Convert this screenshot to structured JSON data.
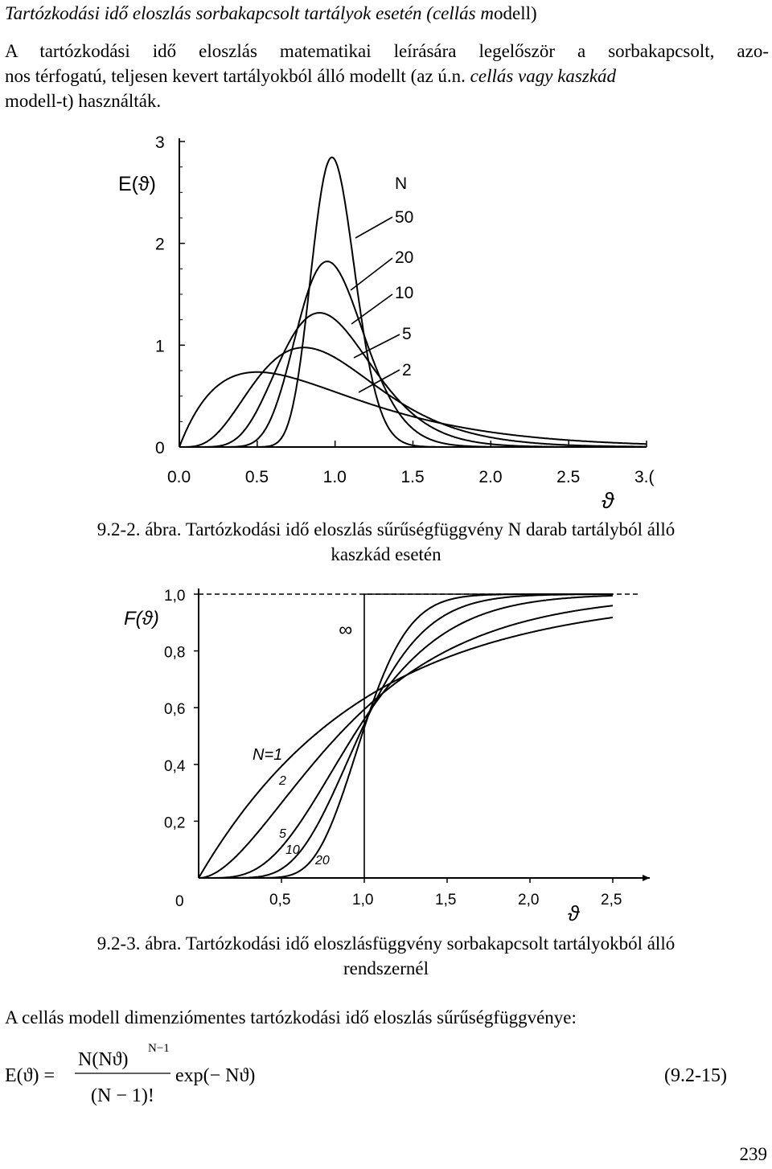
{
  "heading": {
    "italic_part": "Tartózkodási idő eloszlás sorbakapcsolt tartályok esetén (cellás m",
    "normal_part": "odell)"
  },
  "intro": {
    "line1": "A tartózkodási idő eloszlás matematikai leírására legelőször a sorbakapcsolt, azo-",
    "line2_a": "nos térfogatú, teljesen kevert tartályokból álló modellt (az ú.n. ",
    "line2_italic": "cellás vagy kaszkád",
    "line3": "modell-t) használták."
  },
  "figure1": {
    "caption_line1": "9.2-2. ábra. Tartózkodási idő eloszlás sűrűségfüggvény N darab tartályból álló",
    "caption_line2": "kaszkád esetén"
  },
  "figure2": {
    "caption_line1": "9.2-3. ábra. Tartózkodási idő eloszlásfüggvény sorbakapcsolt tartályokból álló",
    "caption_line2": "rendszernél"
  },
  "para2": "A cellás modell dimenziómentes tartózkodási idő eloszlás sűrűségfüggvénye:",
  "equation": {
    "lhs": "E(ϑ) =",
    "numerator": "N(Nϑ)",
    "exponent": "N−1",
    "denominator": "(N − 1)!",
    "factor": "exp(− Nϑ)",
    "number": "(9.2-15)"
  },
  "page_number": "239",
  "chart_data": [
    {
      "type": "line",
      "ylabel": "E(ϑ)",
      "xlabel": "ϑ",
      "x_ticks": [
        "0.0",
        "0.5",
        "1.0",
        "1.5",
        "2.0",
        "2.5",
        "3.("
      ],
      "y_ticks": [
        "0",
        "1",
        "2",
        "3"
      ],
      "xlim": [
        0,
        3
      ],
      "ylim": [
        0,
        3
      ],
      "legend_title": "N",
      "series": [
        {
          "name": "50",
          "N": 50
        },
        {
          "name": "20",
          "N": 20
        },
        {
          "name": "10",
          "N": 10
        },
        {
          "name": "5",
          "N": 5
        },
        {
          "name": "2",
          "N": 2
        }
      ],
      "grid": false
    },
    {
      "type": "line",
      "ylabel": "F(ϑ)",
      "xlabel": "ϑ",
      "x_ticks": [
        "0",
        "0,5",
        "1,0",
        "1,5",
        "2,0",
        "2,5"
      ],
      "y_ticks": [
        "0,2",
        "0,4",
        "0,6",
        "0,8",
        "1,0"
      ],
      "xlim": [
        0,
        2.5
      ],
      "ylim": [
        0,
        1
      ],
      "series": [
        {
          "name": "N=1",
          "N": 1
        },
        {
          "name": "2",
          "N": 2
        },
        {
          "name": "5",
          "N": 5
        },
        {
          "name": "10",
          "N": 10
        },
        {
          "name": "20",
          "N": 20
        },
        {
          "name": "∞",
          "N": "inf"
        }
      ],
      "grid": false
    }
  ]
}
